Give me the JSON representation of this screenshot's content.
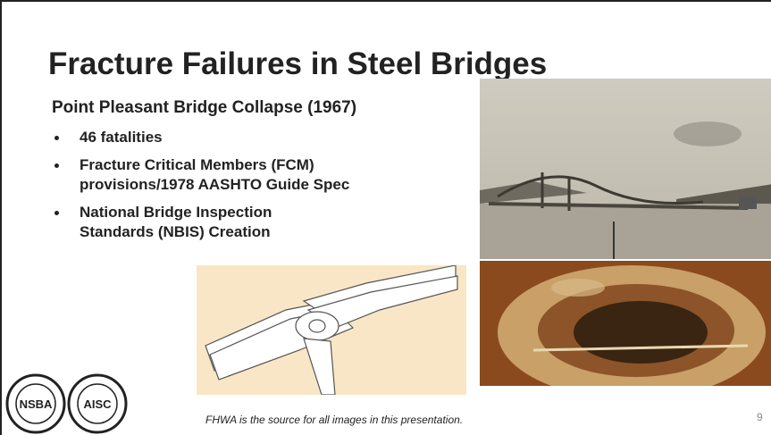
{
  "title": "Fracture Failures in Steel Bridges",
  "subtitle": "Point Pleasant Bridge Collapse (1967)",
  "bullets": [
    [
      "46 fatalities"
    ],
    [
      "Fracture Critical Members (FCM)",
      "provisions/1978 AASHTO Guide Spec"
    ],
    [
      "National Bridge Inspection",
      "Standards (NBIS) Creation"
    ]
  ],
  "logos": [
    "NSBA",
    "AISC"
  ],
  "footer": "FHWA is the source for all images in this presentation.",
  "page_number": "9"
}
